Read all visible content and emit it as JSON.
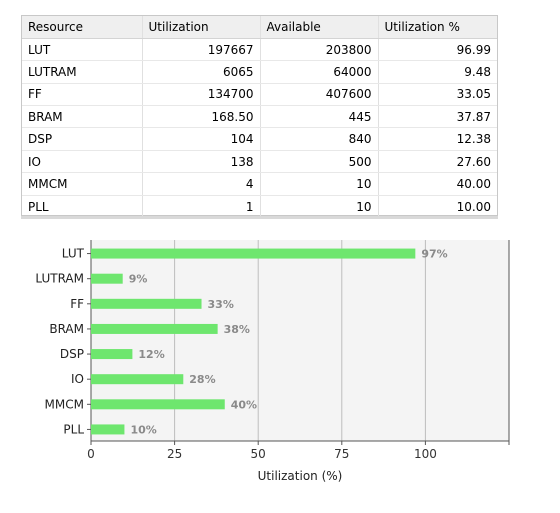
{
  "table": {
    "headers": [
      "Resource",
      "Utilization",
      "Available",
      "Utilization %"
    ],
    "rows": [
      [
        "LUT",
        "197667",
        "203800",
        "96.99"
      ],
      [
        "LUTRAM",
        "6065",
        "64000",
        "9.48"
      ],
      [
        "FF",
        "134700",
        "407600",
        "33.05"
      ],
      [
        "BRAM",
        "168.50",
        "445",
        "37.87"
      ],
      [
        "DSP",
        "104",
        "840",
        "12.38"
      ],
      [
        "IO",
        "138",
        "500",
        "27.60"
      ],
      [
        "MMCM",
        "4",
        "10",
        "40.00"
      ],
      [
        "PLL",
        "1",
        "10",
        "10.00"
      ]
    ]
  },
  "chart_data": {
    "type": "bar",
    "orientation": "horizontal",
    "categories": [
      "LUT",
      "LUTRAM",
      "FF",
      "BRAM",
      "DSP",
      "IO",
      "MMCM",
      "PLL"
    ],
    "values": [
      96.99,
      9.48,
      33.05,
      37.87,
      12.38,
      27.6,
      40.0,
      10.0
    ],
    "value_labels": [
      "97%",
      "9%",
      "33%",
      "38%",
      "12%",
      "28%",
      "40%",
      "10%"
    ],
    "xlabel": "Utilization (%)",
    "ylabel": "",
    "xlim": [
      0,
      125
    ],
    "xticks": [
      "0",
      "25",
      "50",
      "75",
      "100"
    ],
    "grid": "vertical",
    "bar_color": "#6ee66e",
    "label_color": "#8a8a8a"
  }
}
